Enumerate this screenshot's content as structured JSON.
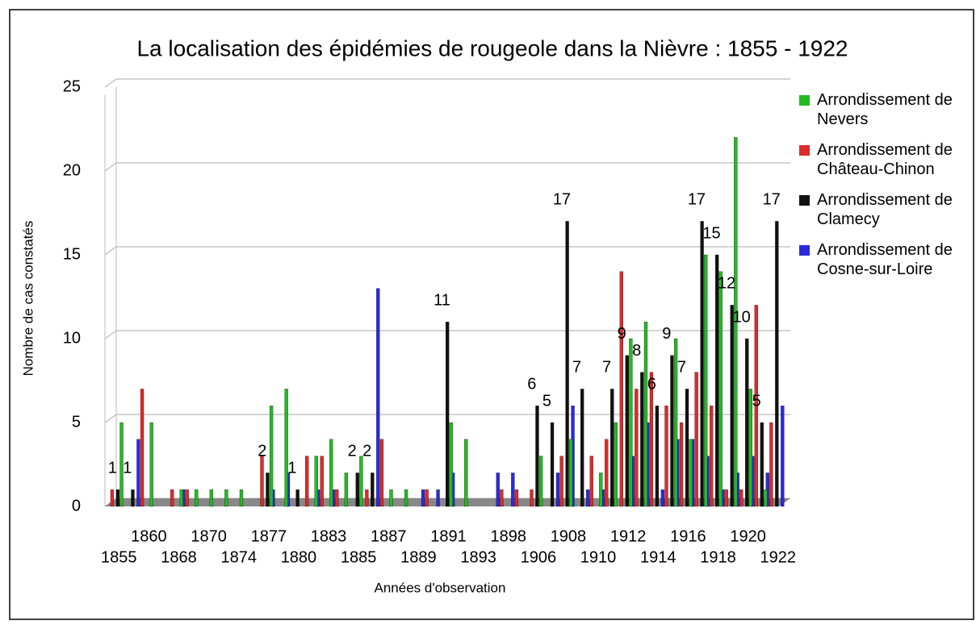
{
  "chart_data": {
    "type": "bar",
    "title": "La localisation des épidémies de rougeole dans la Nièvre : 1855 - 1922",
    "x_label": "Années d'observation",
    "y_label": "Nombre de cas constatés",
    "categories": [
      "1855",
      null,
      "1860",
      null,
      "1868",
      null,
      "1870",
      null,
      "1874",
      null,
      "1877",
      null,
      "1880",
      null,
      "1883",
      null,
      "1885",
      null,
      "1887",
      null,
      "1889",
      null,
      "1891",
      null,
      "1893",
      null,
      "1898",
      null,
      "1906",
      null,
      "1908",
      null,
      "1910",
      null,
      "1912",
      null,
      "1914",
      null,
      "1916",
      null,
      "1918",
      null,
      "1920",
      null,
      "1922"
    ],
    "series": [
      {
        "name": "Arrondissement de Nevers",
        "color": "#22bb22",
        "values": [
          null,
          5,
          null,
          5,
          null,
          1,
          1,
          1,
          1,
          1,
          null,
          6,
          7,
          null,
          3,
          4,
          2,
          3,
          null,
          1,
          1,
          null,
          null,
          5,
          4,
          null,
          null,
          null,
          null,
          3,
          null,
          4,
          null,
          2,
          5,
          10,
          11,
          null,
          10,
          4,
          15,
          14,
          22,
          7,
          1
        ]
      },
      {
        "name": "Arrondissement de Château-Chinon",
        "color": "#dd2a2a",
        "values": [
          1,
          null,
          7,
          null,
          1,
          1,
          null,
          null,
          null,
          null,
          3,
          null,
          null,
          3,
          3,
          1,
          null,
          1,
          4,
          null,
          null,
          1,
          null,
          null,
          null,
          null,
          1,
          1,
          1,
          null,
          3,
          null,
          3,
          4,
          14,
          7,
          8,
          6,
          5,
          8,
          6,
          1,
          1,
          12,
          5
        ]
      },
      {
        "name": "Arrondissement de Clamecy",
        "color": "#111111",
        "values": [
          1,
          1,
          null,
          null,
          null,
          null,
          null,
          null,
          null,
          null,
          2,
          null,
          1,
          null,
          null,
          null,
          2,
          2,
          null,
          null,
          null,
          null,
          11,
          null,
          null,
          null,
          null,
          null,
          6,
          5,
          17,
          7,
          null,
          7,
          9,
          8,
          6,
          9,
          7,
          17,
          15,
          12,
          10,
          5,
          17
        ]
      },
      {
        "name": "Arrondissement de Cosne-sur-Loire",
        "color": "#2a2add",
        "values": [
          null,
          4,
          null,
          null,
          1,
          null,
          null,
          null,
          null,
          null,
          1,
          2,
          null,
          1,
          1,
          null,
          null,
          13,
          null,
          null,
          1,
          1,
          2,
          null,
          null,
          2,
          2,
          null,
          null,
          2,
          6,
          1,
          1,
          null,
          3,
          5,
          1,
          4,
          4,
          3,
          1,
          2,
          3,
          2,
          6
        ]
      }
    ],
    "value_label_series": 2,
    "ylim": [
      0,
      25
    ],
    "yticks": [
      0,
      5,
      10,
      15,
      20,
      25
    ],
    "grid": true
  }
}
